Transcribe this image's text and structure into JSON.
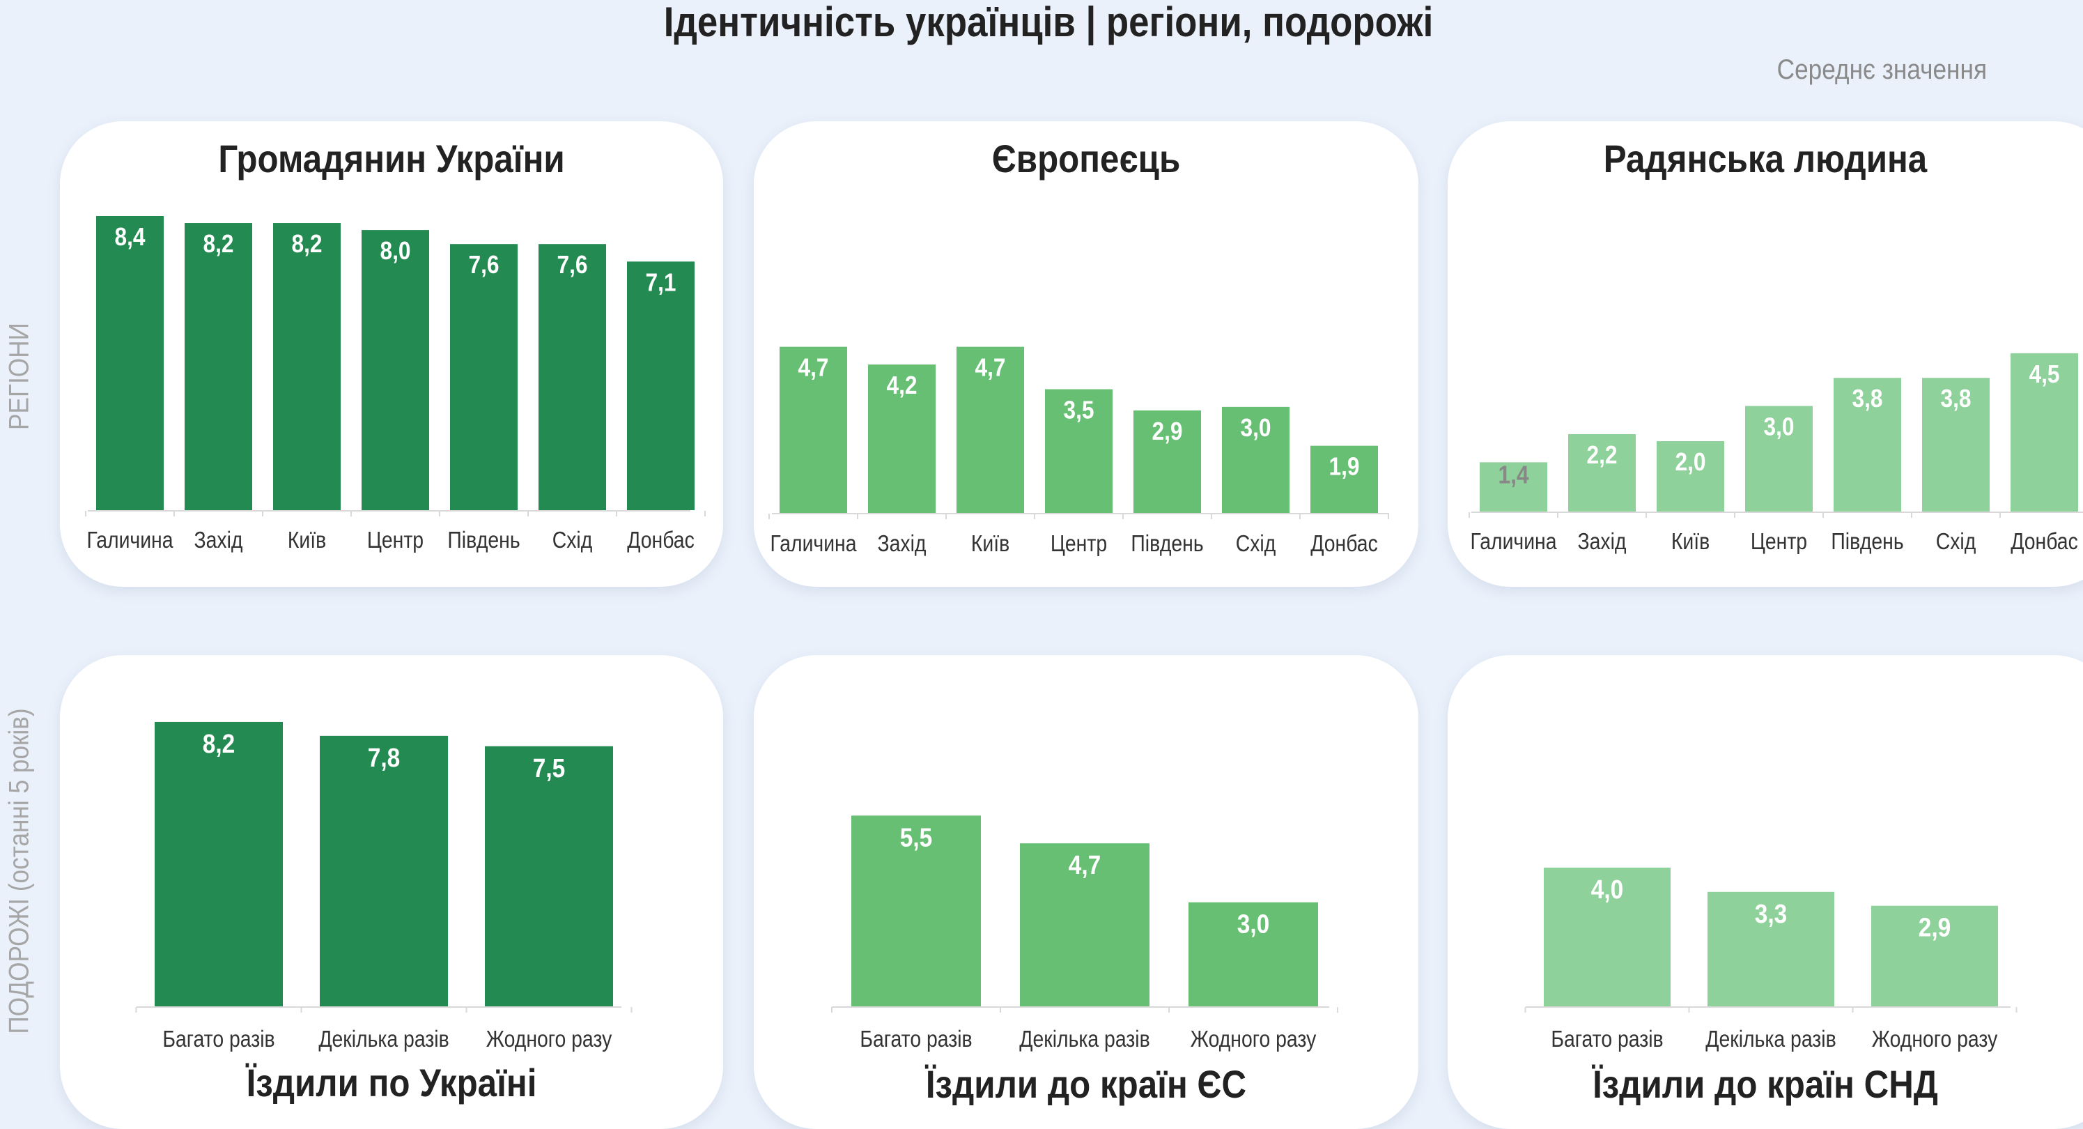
{
  "page": {
    "title": "Ідентичність українців | регіони, подорожі",
    "subtitle": "Середнє значення",
    "row_labels": [
      "РЕГІОНИ",
      "ПОДОРОЖІ (останні 5 років)"
    ]
  },
  "colors": {
    "dark_green": "#238a51",
    "medium_green": "#66bf73",
    "light_green": "#8fd19a",
    "label_on_bar": "#ffffff",
    "label_low": "#888888"
  },
  "chart_data": [
    {
      "type": "bar",
      "title": "Громадянин України",
      "categories": [
        "Галичина",
        "Захід",
        "Київ",
        "Центр",
        "Південь",
        "Схід",
        "Донбас"
      ],
      "values": [
        8.4,
        8.2,
        8.2,
        8.0,
        7.6,
        7.6,
        7.1
      ],
      "value_labels": [
        "8,4",
        "8,2",
        "8,2",
        "8,0",
        "7,6",
        "7,6",
        "7,1"
      ],
      "ylim": [
        0,
        8.4
      ],
      "color": "#238a51"
    },
    {
      "type": "bar",
      "title": "Європеєць",
      "categories": [
        "Галичина",
        "Захід",
        "Київ",
        "Центр",
        "Південь",
        "Схід",
        "Донбас"
      ],
      "values": [
        4.7,
        4.2,
        4.7,
        3.5,
        2.9,
        3.0,
        1.9
      ],
      "value_labels": [
        "4,7",
        "4,2",
        "4,7",
        "3,5",
        "2,9",
        "3,0",
        "1,9"
      ],
      "ylim": [
        0,
        8.4
      ],
      "color": "#66bf73"
    },
    {
      "type": "bar",
      "title": "Радянська людина",
      "categories": [
        "Галичина",
        "Захід",
        "Київ",
        "Центр",
        "Південь",
        "Схід",
        "Донбас"
      ],
      "values": [
        1.4,
        2.2,
        2.0,
        3.0,
        3.8,
        3.8,
        4.5
      ],
      "value_labels": [
        "1,4",
        "2,2",
        "2,0",
        "3,0",
        "3,8",
        "3,8",
        "4,5"
      ],
      "ylim": [
        0,
        8.4
      ],
      "color": "#8fd19a"
    },
    {
      "type": "bar",
      "title": "Їздили по Україні",
      "categories": [
        "Багато разів",
        "Декілька разів",
        "Жодного разу"
      ],
      "values": [
        8.2,
        7.8,
        7.5
      ],
      "value_labels": [
        "8,2",
        "7,8",
        "7,5"
      ],
      "ylim": [
        0,
        8.4
      ],
      "color": "#238a51"
    },
    {
      "type": "bar",
      "title": "Їздили до країн ЄС",
      "categories": [
        "Багато разів",
        "Декілька разів",
        "Жодного разу"
      ],
      "values": [
        5.5,
        4.7,
        3.0
      ],
      "value_labels": [
        "5,5",
        "4,7",
        "3,0"
      ],
      "ylim": [
        0,
        8.4
      ],
      "color": "#66bf73"
    },
    {
      "type": "bar",
      "title": "Їздили до країн СНД",
      "categories": [
        "Багато разів",
        "Декілька разів",
        "Жодного разу"
      ],
      "values": [
        4.0,
        3.3,
        2.9
      ],
      "value_labels": [
        "4,0",
        "3,3",
        "2,9"
      ],
      "ylim": [
        0,
        8.4
      ],
      "color": "#8fd19a"
    }
  ]
}
